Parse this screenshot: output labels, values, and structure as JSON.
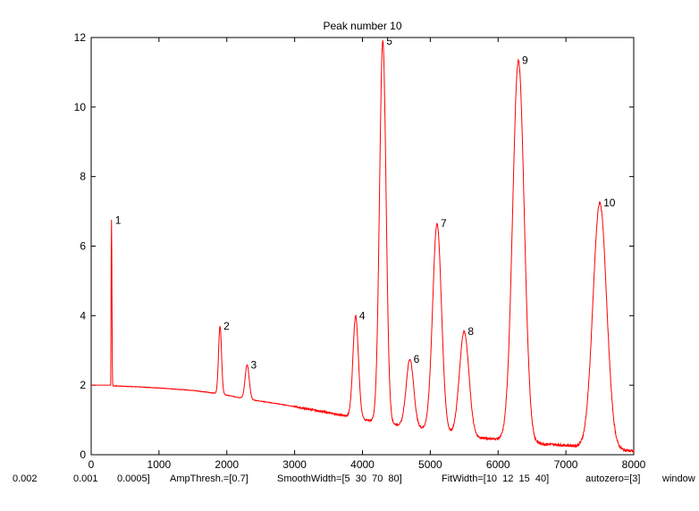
{
  "chart_data": {
    "type": "line",
    "title": "Peak number 10",
    "xlabel": "",
    "ylabel": "",
    "xlim": [
      0,
      8000
    ],
    "ylim": [
      0,
      12
    ],
    "x_ticks": [
      0,
      1000,
      2000,
      3000,
      4000,
      5000,
      6000,
      7000,
      8000
    ],
    "y_ticks": [
      0,
      2,
      4,
      6,
      8,
      10,
      12
    ],
    "grid": false,
    "series_color": "#ff0000",
    "baseline": [
      [
        0,
        2.0
      ],
      [
        500,
        1.97
      ],
      [
        1000,
        1.92
      ],
      [
        1500,
        1.85
      ],
      [
        1900,
        1.75
      ],
      [
        2300,
        1.6
      ],
      [
        2800,
        1.45
      ],
      [
        3300,
        1.28
      ],
      [
        3800,
        1.1
      ],
      [
        4200,
        0.95
      ],
      [
        5000,
        0.72
      ],
      [
        5600,
        0.5
      ],
      [
        6000,
        0.45
      ],
      [
        6500,
        0.33
      ],
      [
        7000,
        0.27
      ],
      [
        7500,
        0.2
      ],
      [
        8000,
        0.1
      ]
    ],
    "peaks": [
      {
        "label": "1",
        "x": 300,
        "y": 6.75,
        "width": 6
      },
      {
        "label": "2",
        "x": 1900,
        "y": 3.7,
        "width": 22
      },
      {
        "label": "3",
        "x": 2300,
        "y": 2.58,
        "width": 30
      },
      {
        "label": "4",
        "x": 3900,
        "y": 4.0,
        "width": 40
      },
      {
        "label": "5",
        "x": 4300,
        "y": 11.9,
        "width": 48
      },
      {
        "label": "6",
        "x": 4700,
        "y": 2.75,
        "width": 55
      },
      {
        "label": "7",
        "x": 5100,
        "y": 6.65,
        "width": 65
      },
      {
        "label": "8",
        "x": 5500,
        "y": 3.55,
        "width": 70
      },
      {
        "label": "9",
        "x": 6300,
        "y": 11.35,
        "width": 85
      },
      {
        "label": "10",
        "x": 7500,
        "y": 7.25,
        "width": 100
      }
    ]
  },
  "status_bar": [
    "0.002",
    "0.001",
    "0.0005]",
    "AmpThresh.=[0.7]",
    "SmoothWidth=[5  30  70  80]",
    "FitWidth=[10  12  15  40]",
    "autozero=[3]",
    "window"
  ]
}
